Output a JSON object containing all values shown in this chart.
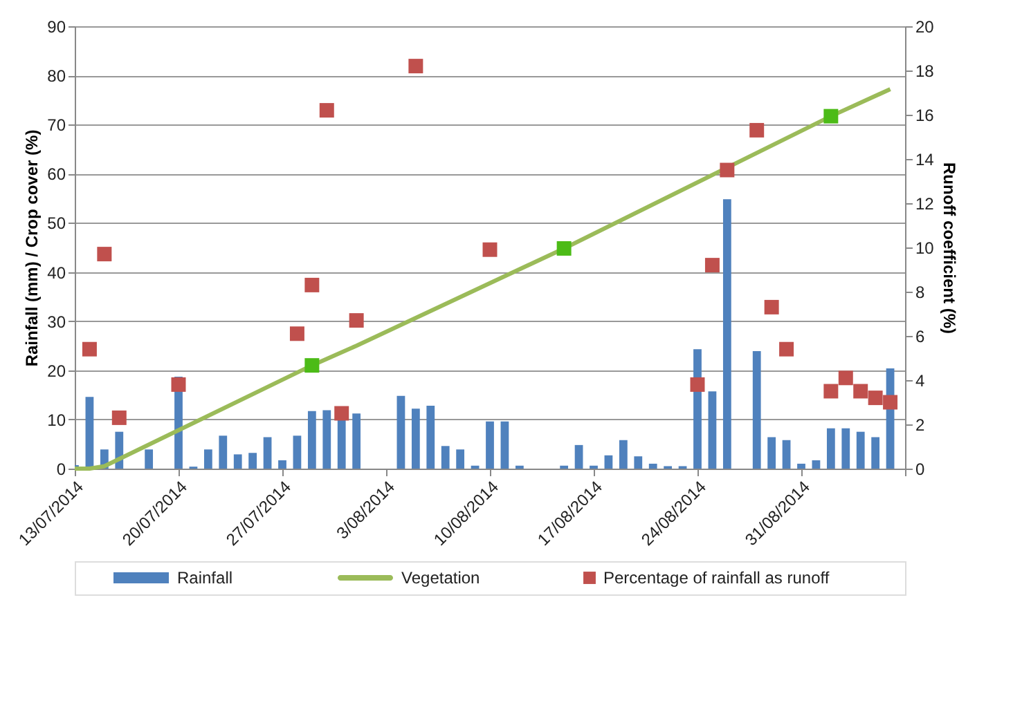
{
  "chart_data": {
    "type": "bar",
    "ylabel": "Rainfall (mm) / Crop cover (%)",
    "y2label": "Runoff coefficient (%)",
    "xlim": [
      "2014-07-13",
      "2014-09-07"
    ],
    "xticks": [
      {
        "value": "2014-07-13",
        "label": "13/07/2014"
      },
      {
        "value": "2014-07-20",
        "label": "20/07/2014"
      },
      {
        "value": "2014-07-27",
        "label": "27/07/2014"
      },
      {
        "value": "2014-08-03",
        "label": "3/08/2014"
      },
      {
        "value": "2014-08-10",
        "label": "10/08/2014"
      },
      {
        "value": "2014-08-17",
        "label": "17/08/2014"
      },
      {
        "value": "2014-08-24",
        "label": "24/08/2014"
      },
      {
        "value": "2014-08-31",
        "label": "31/08/2014"
      },
      {
        "value": "2014-09-07",
        "label": null
      }
    ],
    "ylim": [
      0,
      90
    ],
    "yticks": [
      0,
      10,
      20,
      30,
      40,
      50,
      60,
      70,
      80,
      90
    ],
    "y2lim": [
      0,
      20
    ],
    "y2ticks": [
      0,
      2,
      4,
      6,
      8,
      10,
      12,
      14,
      16,
      18,
      20
    ],
    "grid": "y",
    "legend": "bottom",
    "series": [
      {
        "name": "Rainfall",
        "color": "#4f81bd",
        "x": [
          "2014-07-13",
          "2014-07-14",
          "2014-07-15",
          "2014-07-16",
          "2014-07-18",
          "2014-07-20",
          "2014-07-21",
          "2014-07-22",
          "2014-07-23",
          "2014-07-24",
          "2014-07-25",
          "2014-07-26",
          "2014-07-27",
          "2014-07-28",
          "2014-07-29",
          "2014-07-30",
          "2014-07-31",
          "2014-08-01",
          "2014-08-04",
          "2014-08-05",
          "2014-08-06",
          "2014-08-07",
          "2014-08-08",
          "2014-08-09",
          "2014-08-10",
          "2014-08-11",
          "2014-08-12",
          "2014-08-15",
          "2014-08-16",
          "2014-08-17",
          "2014-08-18",
          "2014-08-19",
          "2014-08-20",
          "2014-08-21",
          "2014-08-22",
          "2014-08-23",
          "2014-08-24",
          "2014-08-25",
          "2014-08-26",
          "2014-08-28",
          "2014-08-29",
          "2014-08-30",
          "2014-08-31",
          "2014-09-01",
          "2014-09-02",
          "2014-09-03",
          "2014-09-04",
          "2014-09-05",
          "2014-09-06"
        ],
        "values": [
          0.7,
          14.6,
          3.9,
          7.5,
          3.9,
          18.7,
          0.4,
          3.9,
          6.7,
          2.9,
          3.2,
          6.4,
          1.7,
          6.7,
          11.7,
          11.9,
          10.4,
          11.2,
          14.8,
          12.2,
          12.8,
          4.6,
          3.9,
          0.6,
          9.6,
          9.6,
          0.6,
          0.6,
          4.8,
          0.6,
          2.7,
          5.8,
          2.5,
          1.0,
          0.5,
          0.5,
          24.3,
          15.7,
          54.8,
          23.9,
          6.4,
          5.8,
          1.0,
          1.7,
          8.2,
          8.2,
          7.5,
          6.4,
          20.4
        ]
      },
      {
        "name": "Vegetation",
        "type": "line",
        "color": "#9bbb59",
        "marker": "none",
        "x": [
          "2014-07-13",
          "2014-07-14",
          "2014-07-15",
          "2014-07-29",
          "2014-08-01",
          "2014-08-15",
          "2014-09-02",
          "2014-09-06"
        ],
        "values": [
          0,
          0,
          0.5,
          21,
          25,
          44.8,
          71.7,
          77.2
        ]
      },
      {
        "type": "scatter",
        "color": "#4cbb17",
        "marker": "square",
        "x": [
          "2014-07-29",
          "2014-08-15",
          "2014-09-02"
        ],
        "values": [
          21,
          44.8,
          71.7
        ]
      },
      {
        "name": "Percentage of rainfall as runoff",
        "type": "scatter",
        "axis": "y2",
        "color": "#c0504d",
        "marker": "square",
        "x": [
          "2014-07-14",
          "2014-07-15",
          "2014-07-16",
          "2014-07-20",
          "2014-07-28",
          "2014-07-29",
          "2014-07-30",
          "2014-07-31",
          "2014-08-01",
          "2014-08-05",
          "2014-08-10",
          "2014-08-24",
          "2014-08-25",
          "2014-08-26",
          "2014-08-28",
          "2014-08-29",
          "2014-08-30",
          "2014-09-02",
          "2014-09-03",
          "2014-09-04",
          "2014-09-05",
          "2014-09-06"
        ],
        "values": [
          5.4,
          9.7,
          2.3,
          3.8,
          6.1,
          8.3,
          16.2,
          2.5,
          6.7,
          18.2,
          9.9,
          3.8,
          9.2,
          13.5,
          15.3,
          7.3,
          5.4,
          3.5,
          4.1,
          3.5,
          3.2,
          3.0
        ]
      }
    ]
  }
}
